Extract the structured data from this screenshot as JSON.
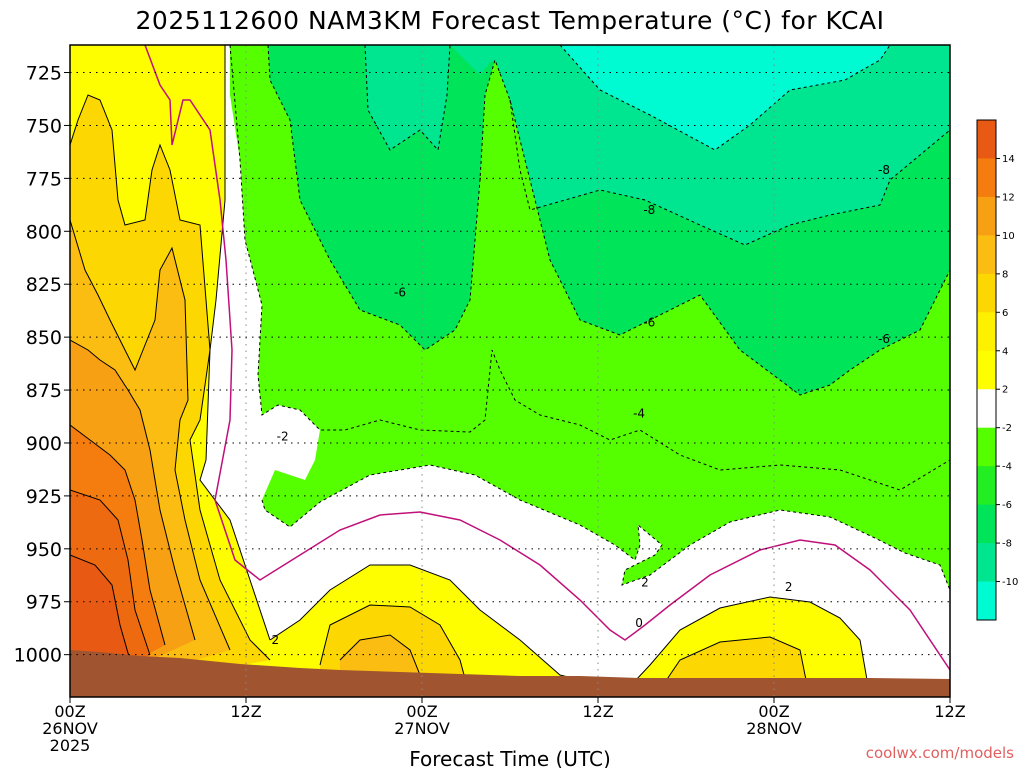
{
  "chart_data": {
    "type": "heatmap",
    "title": "2025112600 NAM3KM Forecast Temperature (°C) for KCAI",
    "xlabel": "Forecast Time (UTC)",
    "ylabel": "",
    "y_scale": "pressure (inverted, increasing downward)",
    "ylim": [
      1020,
      712
    ],
    "y_ticks": [
      "725",
      "750",
      "775",
      "800",
      "825",
      "850",
      "875",
      "900",
      "925",
      "950",
      "975",
      "1000"
    ],
    "x_ticks": [
      {
        "hour": 0,
        "line1": "00Z",
        "line2": "26NOV",
        "line3": "2025"
      },
      {
        "hour": 12,
        "line1": "12Z",
        "line2": "",
        "line3": ""
      },
      {
        "hour": 24,
        "line1": "00Z",
        "line2": "27NOV",
        "line3": ""
      },
      {
        "hour": 36,
        "line1": "12Z",
        "line2": "",
        "line3": ""
      },
      {
        "hour": 48,
        "line1": "00Z",
        "line2": "28NOV",
        "line3": ""
      },
      {
        "hour": 60,
        "line1": "12Z",
        "line2": "",
        "line3": ""
      }
    ],
    "xlim": [
      0,
      60
    ],
    "grid": true,
    "colorbar": {
      "labels": [
        "14",
        "12",
        "10",
        "8",
        "6",
        "4",
        "2",
        "-2",
        "-4",
        "-6",
        "-8",
        "-10"
      ],
      "colors": [
        "#e85a14",
        "#f57d0f",
        "#f8a013",
        "#fbbd12",
        "#fdd701",
        "#fdf000",
        "#fefe00",
        "#ffffff",
        "#55ff00",
        "#22ee22",
        "#00e45a",
        "#00e690",
        "#00fbd2"
      ]
    },
    "contour_labels": [
      {
        "text": "-6",
        "hour": 22.5,
        "p": 829
      },
      {
        "text": "-8",
        "hour": 39.5,
        "p": 790
      },
      {
        "text": "-6",
        "hour": 39.5,
        "p": 843
      },
      {
        "text": "-8",
        "hour": 55.5,
        "p": 771
      },
      {
        "text": "-6",
        "hour": 55.5,
        "p": 851
      },
      {
        "text": "-4",
        "hour": 38.8,
        "p": 886
      },
      {
        "text": "-2",
        "hour": 14.5,
        "p": 897
      },
      {
        "text": "2",
        "hour": 39.2,
        "p": 966
      },
      {
        "text": "0",
        "hour": 38.8,
        "p": 985
      },
      {
        "text": "2",
        "hour": 14.0,
        "p": 993
      },
      {
        "text": "2",
        "hour": 49.0,
        "p": 968
      }
    ]
  },
  "credit": "coolwx.com/models"
}
